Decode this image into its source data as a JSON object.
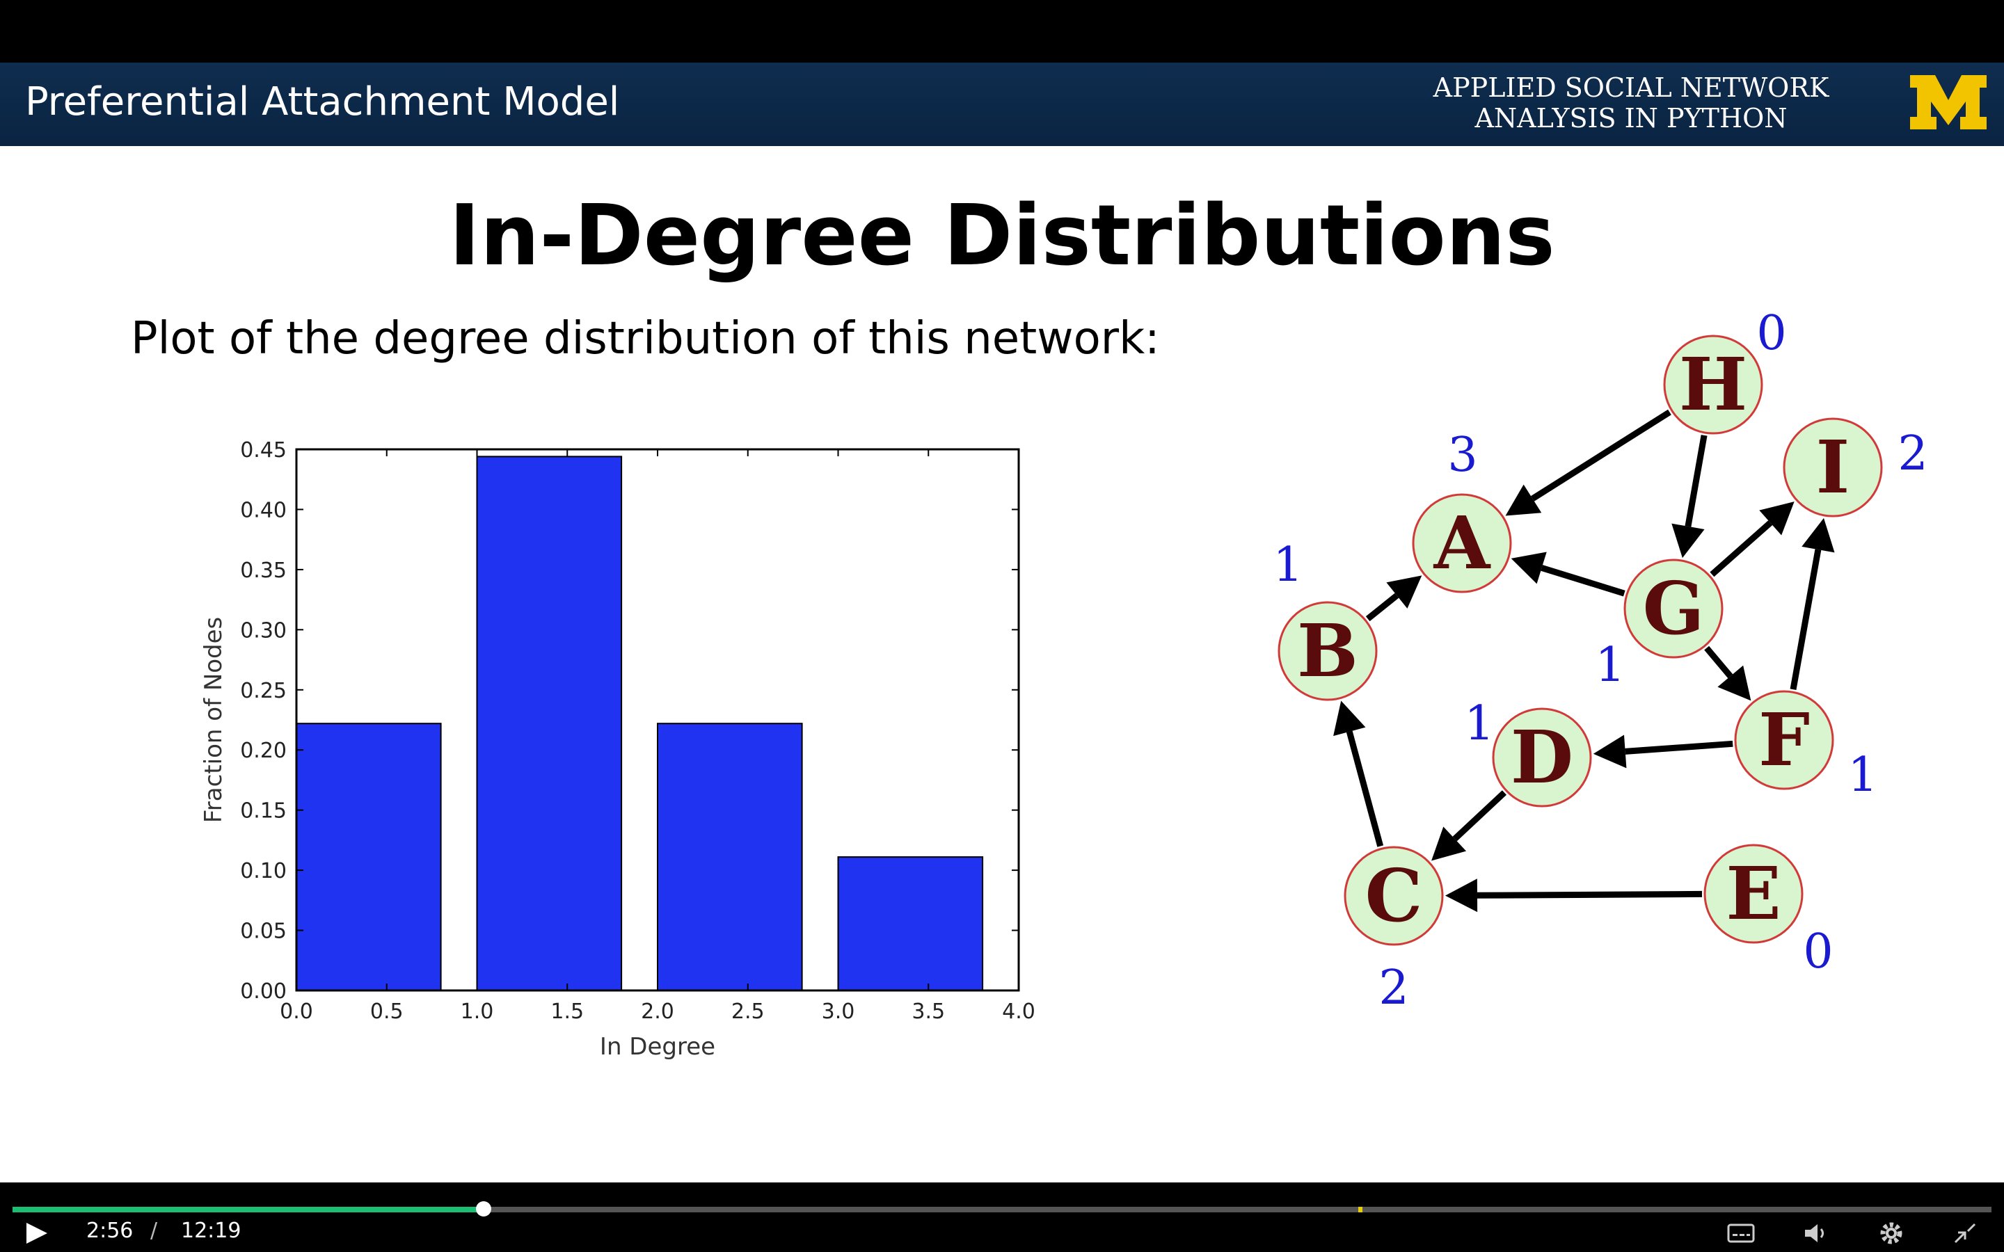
{
  "header": {
    "title": "Preferential Attachment Model",
    "course_line1": "APPLIED SOCIAL NETWORK",
    "course_line2": "ANALYSIS IN PYTHON",
    "logo": "block-M-logo",
    "logo_color": "#f2c400",
    "banner_color": "#0f2d4f"
  },
  "slide": {
    "title": "In-Degree Distributions",
    "subtitle": "Plot of the degree distribution of this network:"
  },
  "chart_data": {
    "type": "bar",
    "bars": [
      {
        "x": 0.0,
        "width": 0.8,
        "value": 0.222
      },
      {
        "x": 1.0,
        "width": 0.8,
        "value": 0.444
      },
      {
        "x": 2.0,
        "width": 0.8,
        "value": 0.222
      },
      {
        "x": 3.0,
        "width": 0.8,
        "value": 0.111
      }
    ],
    "xlim": [
      0.0,
      4.0
    ],
    "ylim": [
      0.0,
      0.45
    ],
    "xticks": [
      "0.0",
      "0.5",
      "1.0",
      "1.5",
      "2.0",
      "2.5",
      "3.0",
      "3.5",
      "4.0"
    ],
    "yticks": [
      "0.00",
      "0.05",
      "0.10",
      "0.15",
      "0.20",
      "0.25",
      "0.30",
      "0.35",
      "0.40",
      "0.45"
    ],
    "xlabel": "In Degree",
    "ylabel": "Fraction of Nodes",
    "bar_color": "#1f33f0",
    "grid": false
  },
  "network": {
    "nodes": [
      {
        "id": "H",
        "in_degree": "0"
      },
      {
        "id": "I",
        "in_degree": "2"
      },
      {
        "id": "A",
        "in_degree": "3"
      },
      {
        "id": "G",
        "in_degree": "1"
      },
      {
        "id": "B",
        "in_degree": "1"
      },
      {
        "id": "D",
        "in_degree": "1"
      },
      {
        "id": "F",
        "in_degree": "1"
      },
      {
        "id": "C",
        "in_degree": "2"
      },
      {
        "id": "E",
        "in_degree": "0"
      }
    ],
    "edges": [
      [
        "H",
        "A"
      ],
      [
        "H",
        "G"
      ],
      [
        "G",
        "A"
      ],
      [
        "G",
        "I"
      ],
      [
        "G",
        "F"
      ],
      [
        "F",
        "I"
      ],
      [
        "F",
        "D"
      ],
      [
        "B",
        "A"
      ],
      [
        "D",
        "C"
      ],
      [
        "C",
        "B"
      ],
      [
        "E",
        "C"
      ]
    ],
    "node_fill": "#d8f5cf",
    "node_stroke": "#d23a3a",
    "letter_color": "#5a0c0c",
    "degree_label_color": "#1a1ad0"
  },
  "player": {
    "current_time": "2:56",
    "separator": "/",
    "duration": "12:19",
    "progress_fraction": 0.238,
    "progress_color": "#1bbf74",
    "icons": [
      "play-icon",
      "captions-icon",
      "volume-icon",
      "settings-icon",
      "exit-fullscreen-icon"
    ]
  }
}
